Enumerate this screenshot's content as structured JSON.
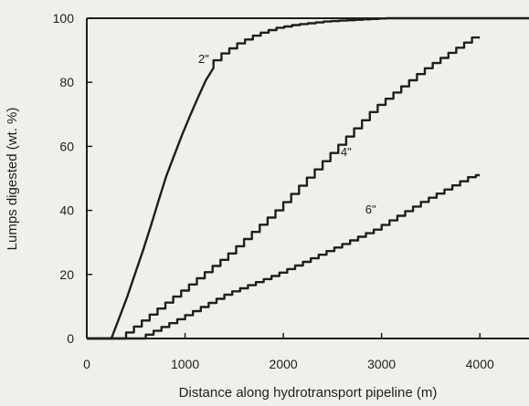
{
  "chart_data": {
    "type": "line",
    "title": "",
    "xlabel": "Distance along hydrotransport pipeline (m)",
    "ylabel": "Lumps digested (wt. %)",
    "xlim": [
      0,
      4500
    ],
    "ylim": [
      0,
      100
    ],
    "xticks": [
      0,
      1000,
      2000,
      3000,
      4000
    ],
    "yticks": [
      0,
      20,
      40,
      60,
      80,
      100
    ],
    "grid": false,
    "legend": "none (series labeled inline)",
    "series": [
      {
        "name": "2\"",
        "stepped": true,
        "x": [
          0,
          250,
          400,
          600,
          800,
          1000,
          1200,
          1300,
          1450,
          1600,
          1800,
          2000,
          2200,
          2500,
          2800,
          3100
        ],
        "y": [
          0,
          0,
          12,
          30,
          50,
          66,
          80,
          85,
          89,
          92,
          95,
          97,
          98,
          99,
          99.5,
          100
        ]
      },
      {
        "name": "4\"",
        "stepped": true,
        "x": [
          0,
          400,
          1000,
          1500,
          2000,
          2500,
          3000,
          3500,
          4000
        ],
        "y": [
          0,
          0,
          14,
          26,
          40,
          56,
          72,
          84,
          94
        ]
      },
      {
        "name": "6\"",
        "stepped": true,
        "x": [
          0,
          600,
          1000,
          1500,
          2000,
          2500,
          3000,
          3500,
          4000
        ],
        "y": [
          0,
          0,
          6,
          14,
          20,
          27,
          34,
          43,
          51
        ]
      }
    ],
    "annotations": [
      {
        "text": "2\"",
        "x": 1300,
        "y": 86
      },
      {
        "text": "4\"",
        "x": 2750,
        "y": 57
      },
      {
        "text": "6\"",
        "x": 3000,
        "y": 39
      }
    ]
  }
}
